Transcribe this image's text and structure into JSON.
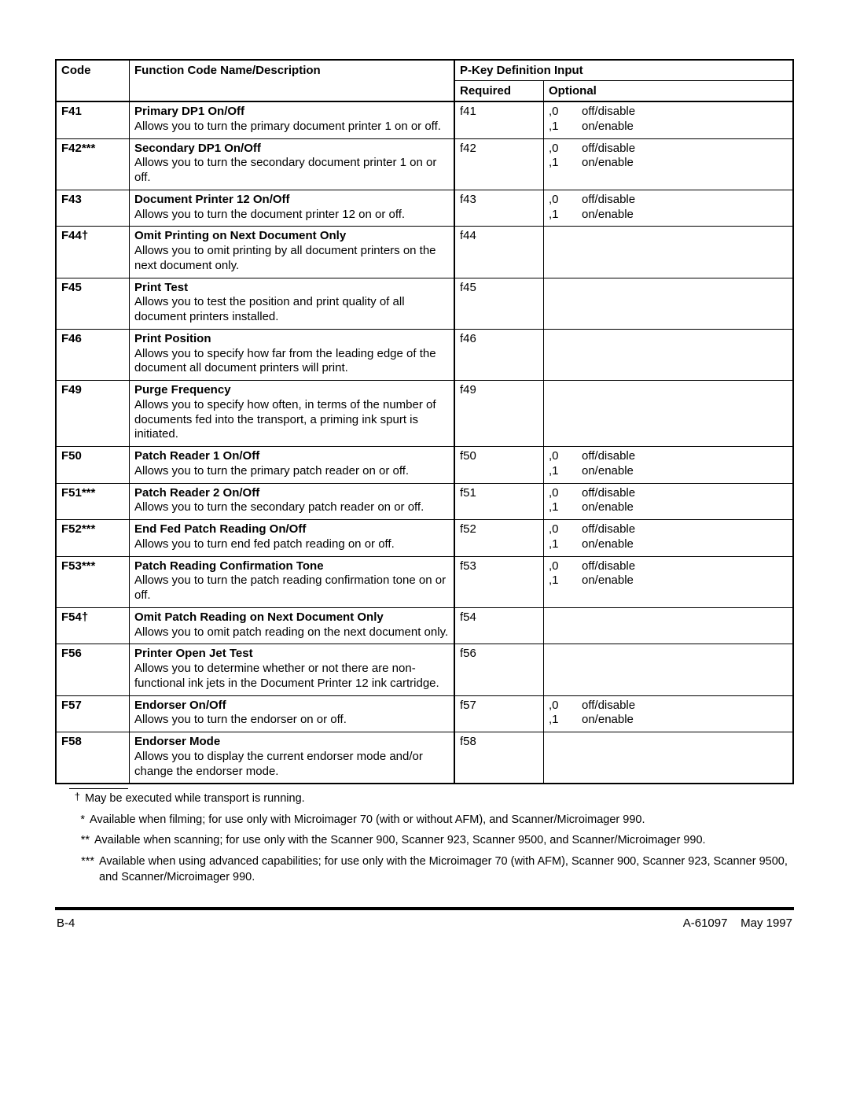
{
  "headers": {
    "pkey_group": "P-Key Definition Input",
    "code": "Code",
    "name_desc": "Function Code Name/Description",
    "required": "Required",
    "optional": "Optional"
  },
  "rows": [
    {
      "code": "F41",
      "name": "Primary DP1 On/Off",
      "desc": "Allows you to turn the primary document printer 1 on or off.",
      "required": "f41",
      "opt_keys": ",0\n,1",
      "opt_vals": "off/disable\non/enable"
    },
    {
      "code": "F42***",
      "name": "Secondary DP1 On/Off",
      "desc": "Allows you to turn the secondary document printer 1 on or off.",
      "required": "f42",
      "opt_keys": ",0\n,1",
      "opt_vals": "off/disable\non/enable"
    },
    {
      "code": "F43",
      "name": "Document Printer 12 On/Off",
      "desc": "Allows you to turn the document printer 12 on or off.",
      "required": "f43",
      "opt_keys": ",0\n,1",
      "opt_vals": "off/disable\non/enable"
    },
    {
      "code": "F44†",
      "name": "Omit Printing on Next Document Only",
      "desc": "Allows you to omit printing by all document printers on the next document only.",
      "required": "f44",
      "opt_keys": "",
      "opt_vals": ""
    },
    {
      "code": "F45",
      "name": "Print Test",
      "desc": "Allows you to test the position and print quality of all document printers installed.",
      "required": "f45",
      "opt_keys": "",
      "opt_vals": ""
    },
    {
      "code": "F46",
      "name": "Print Position",
      "desc": "Allows you to specify how far from the leading edge of the document all document printers will print.",
      "required": "f46",
      "opt_keys": "",
      "opt_vals": ""
    },
    {
      "code": "F49",
      "name": "Purge Frequency",
      "desc": "Allows you to specify how often, in terms of the number of documents fed into the transport, a priming ink spurt is initiated.",
      "required": "f49",
      "opt_keys": "",
      "opt_vals": ""
    },
    {
      "code": "F50",
      "name": "Patch Reader 1 On/Off",
      "desc": "Allows you to turn the primary patch reader on or off.",
      "required": "f50",
      "opt_keys": ",0\n,1",
      "opt_vals": "off/disable\non/enable"
    },
    {
      "code": "F51***",
      "name": "Patch Reader 2 On/Off",
      "desc": "Allows you to turn the secondary patch reader on or off.",
      "required": "f51",
      "opt_keys": ",0\n,1",
      "opt_vals": "off/disable\non/enable"
    },
    {
      "code": "F52***",
      "name": "End Fed Patch Reading On/Off",
      "desc": "Allows you to turn end fed patch reading on or off.",
      "required": "f52",
      "opt_keys": ",0\n,1",
      "opt_vals": "off/disable\non/enable"
    },
    {
      "code": "F53***",
      "name": "Patch Reading Confirmation Tone",
      "desc": "Allows you to turn the patch reading confirmation tone on or off.",
      "required": "f53",
      "opt_keys": ",0\n,1",
      "opt_vals": "off/disable\non/enable"
    },
    {
      "code": "F54†",
      "name": "Omit Patch Reading on Next Document Only",
      "desc": "Allows you to omit patch reading on the next document only.",
      "required": "f54",
      "opt_keys": "",
      "opt_vals": ""
    },
    {
      "code": "F56",
      "name": "Printer Open Jet Test",
      "desc": "Allows you to determine whether or not there are non-functional ink jets in the Document Printer 12 ink cartridge.",
      "required": "f56",
      "opt_keys": "",
      "opt_vals": ""
    },
    {
      "code": "F57",
      "name": "Endorser On/Off",
      "desc": "Allows you to turn the endorser on or off.",
      "required": "f57",
      "opt_keys": ",0\n,1",
      "opt_vals": "off/disable\non/enable"
    },
    {
      "code": "F58",
      "name": "Endorser Mode",
      "desc": "Allows you to display the current endorser mode and/or change the endorser mode.",
      "required": "f58",
      "opt_keys": "",
      "opt_vals": ""
    }
  ],
  "footnotes": {
    "dagger": "May be executed while transport is running.",
    "star1": "Available when filming; for use only with Microimager 70 (with or without AFM), and Scanner/Microimager 990.",
    "star2": "Available when scanning; for use only with the Scanner 900, Scanner 923, Scanner 9500, and Scanner/Microimager 990.",
    "star3": "Available when using advanced capabilities; for use only with the Microimager 70 (with AFM), Scanner 900, Scanner 923, Scanner 9500, and Scanner/Microimager 990."
  },
  "footer": {
    "left": "B-4",
    "right": "A-61097    May 1997"
  }
}
